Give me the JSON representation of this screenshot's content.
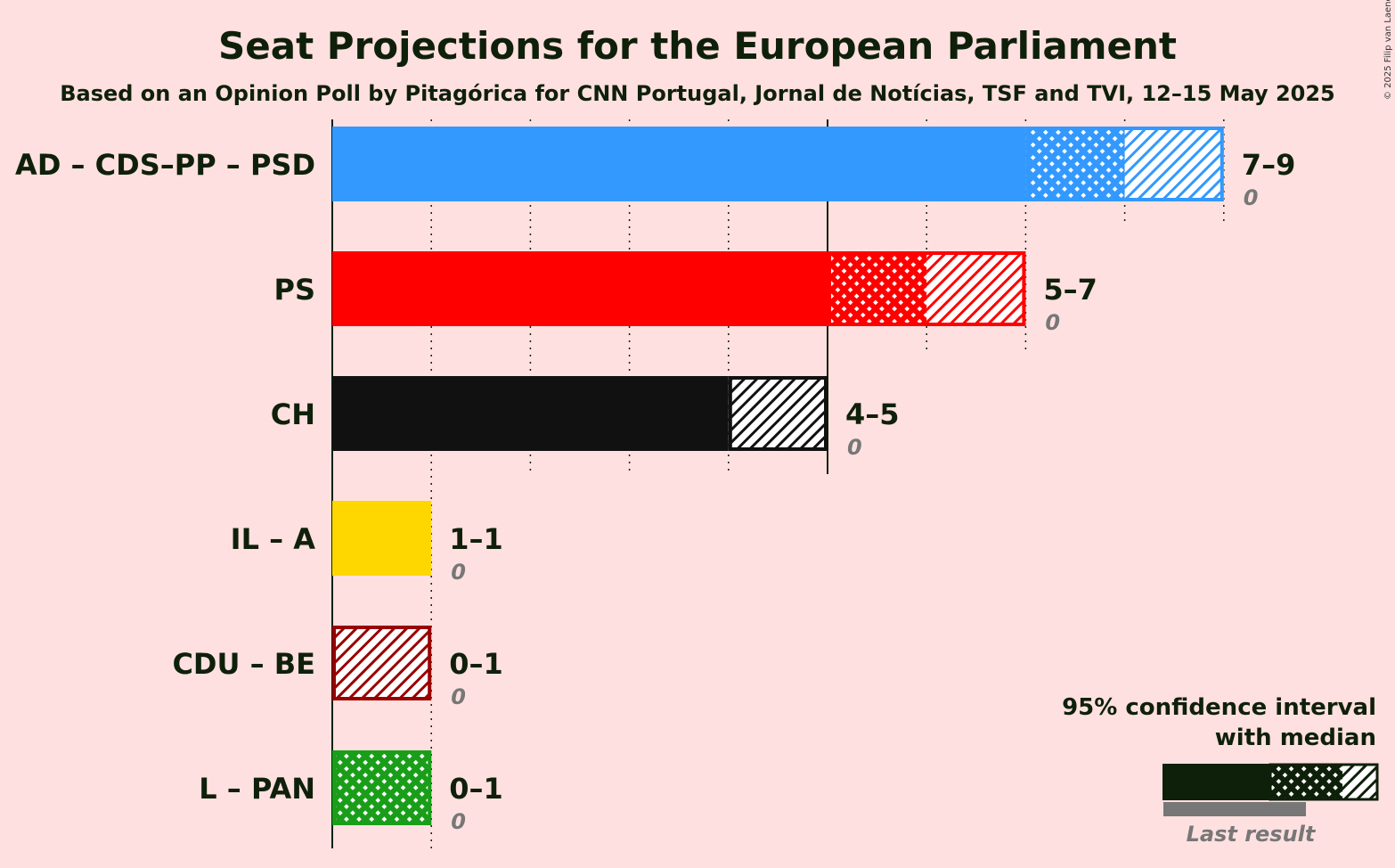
{
  "title": "Seat Projections for the European Parliament",
  "subtitle": "Based on an Opinion Poll by Pitagórica for CNN Portugal, Jornal de Notícias, TSF and TVI, 12–15 May 2025",
  "copyright": "© 2025 Filip van Laenen",
  "legend": {
    "line1": "95% confidence interval",
    "line2": "with median",
    "last_result": "Last result",
    "color": "#0f200a"
  },
  "chart_data": {
    "type": "bar",
    "orientation": "horizontal",
    "axis": {
      "min": 0,
      "max": 9,
      "gridlines_every": 1,
      "solid_gridlines_every": 5
    },
    "parties": [
      {
        "name": "AD – CDS–PP – PSD",
        "color": "#3399ff",
        "range_label": "7–9",
        "last_result": "0",
        "low": 7,
        "median": 8,
        "high": 9
      },
      {
        "name": "PS",
        "color": "#ff0000",
        "range_label": "5–7",
        "last_result": "0",
        "low": 5,
        "median": 6,
        "high": 7
      },
      {
        "name": "CH",
        "color": "#111111",
        "range_label": "4–5",
        "last_result": "0",
        "low": 4,
        "median": 4,
        "high": 5
      },
      {
        "name": "IL – A",
        "color": "#ffd700",
        "range_label": "1–1",
        "last_result": "0",
        "low": 1,
        "median": 1,
        "high": 1
      },
      {
        "name": "CDU – BE",
        "color": "#990000",
        "range_label": "0–1",
        "last_result": "0",
        "low": 0,
        "median": 0,
        "high": 1
      },
      {
        "name": "L – PAN",
        "color": "#1a9e1a",
        "range_label": "0–1",
        "last_result": "0",
        "low": 0,
        "median": 1,
        "high": 1
      }
    ]
  }
}
